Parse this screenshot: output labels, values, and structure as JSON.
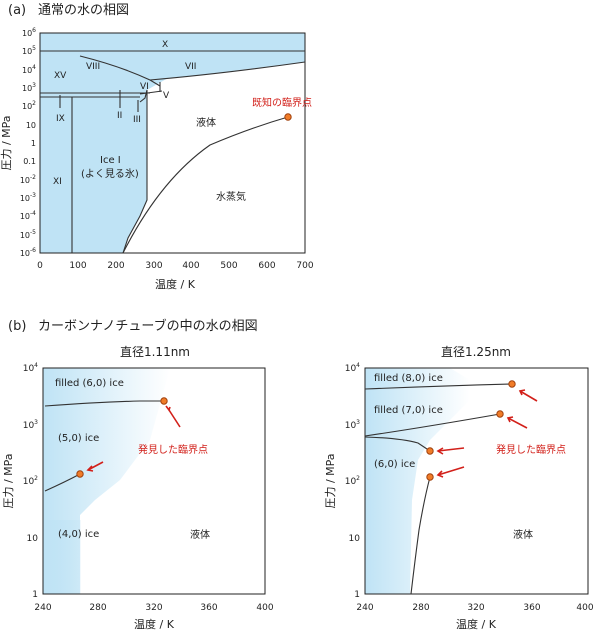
{
  "page": {
    "panel_a_label": "(a)",
    "panel_a_title": "通常の水の相図",
    "panel_b_label": "(b)",
    "panel_b_title": "カーボンナノチューブの中の水の相図"
  },
  "colors": {
    "phase_fill": "#bfe3f5",
    "critical": "#d2201a",
    "point": "#f07c28"
  },
  "chart_data": [
    {
      "type": "line",
      "id": "a",
      "xlabel": "温度 / K",
      "ylabel": "圧力 / MPa",
      "xlim": [
        0,
        700
      ],
      "ylim_exp": [
        -6,
        6
      ],
      "log_y": true,
      "x_ticks": [
        "0",
        "100",
        "200",
        "300",
        "400",
        "500",
        "600",
        "700"
      ],
      "y_ticks": [
        "10^-6",
        "10^-5",
        "10^-4",
        "10^-3",
        "10^-2",
        "0.1",
        "1",
        "10",
        "10^2",
        "10^3",
        "10^4",
        "10^5",
        "10^6"
      ],
      "series": [
        {
          "values": [
            [
              220,
              -6
            ],
            [
              240,
              -4.5
            ],
            [
              260,
              -3.2
            ],
            [
              273,
              -2.2
            ],
            [
              300,
              -1.5
            ],
            [
              350,
              -0.7
            ],
            [
              400,
              -0.1
            ],
            [
              450,
              0.35
            ],
            [
              500,
              0.7
            ],
            [
              550,
              1.0
            ],
            [
              600,
              1.2
            ],
            [
              647,
              1.34
            ]
          ]
        },
        {
          "values": [
            [
              273,
              -2.2
            ],
            [
              272,
              -1
            ],
            [
              272,
              0
            ],
            [
              270,
              1.5
            ],
            [
              262,
              2.0
            ],
            [
              250,
              2.3
            ]
          ]
        },
        {
          "values": [
            [
              0,
              4.8
            ],
            [
              700,
              4.8
            ]
          ]
        },
        {
          "values": [
            [
              100,
              4.5
            ],
            [
              180,
              3.95
            ],
            [
              240,
              3.5
            ],
            [
              270,
              3.0
            ]
          ]
        },
        {
          "values": [
            [
              270,
              3.0
            ],
            [
              400,
              3.6
            ],
            [
              550,
              4.0
            ],
            [
              700,
              4.2
            ]
          ]
        }
      ],
      "phase_labels": [
        "X",
        "VIII",
        "VII",
        "XV",
        "VI",
        "V",
        "IX",
        "II",
        "III",
        "XI",
        "Ice I",
        "(よく見る氷)",
        "液体",
        "水蒸気"
      ],
      "critical_point": {
        "x": 647,
        "y_exp": 1.34,
        "label": "既知の臨界点"
      }
    },
    {
      "type": "line",
      "id": "b1",
      "title": "直径1.11nm",
      "xlabel": "温度 / K",
      "ylabel": "圧力 / MPa",
      "xlim": [
        240,
        400
      ],
      "ylim_exp": [
        0,
        4
      ],
      "log_y": true,
      "x_ticks": [
        "240",
        "280",
        "320",
        "360",
        "400"
      ],
      "y_ticks": [
        "1",
        "10",
        "10^2",
        "10^3",
        "10^4"
      ],
      "series": [
        {
          "values": [
            [
              243,
              3.3
            ],
            [
              270,
              3.35
            ],
            [
              300,
              3.38
            ],
            [
              325,
              3.38
            ]
          ]
        },
        {
          "values": [
            [
              243,
              1.8
            ],
            [
              255,
              1.95
            ],
            [
              265,
              2.1
            ]
          ]
        }
      ],
      "phase_labels": [
        "filled (6,0) ice",
        "(5,0) ice",
        "(4,0) ice",
        "液体"
      ],
      "critical_points": [
        {
          "x": 325,
          "y_exp": 3.38
        },
        {
          "x": 265,
          "y_exp": 2.1
        }
      ],
      "critical_label": "発見した臨界点"
    },
    {
      "type": "line",
      "id": "b2",
      "title": "直径1.25nm",
      "xlabel": "温度 / K",
      "ylabel": "圧力 / MPa",
      "xlim": [
        240,
        400
      ],
      "ylim_exp": [
        0,
        4
      ],
      "log_y": true,
      "x_ticks": [
        "240",
        "280",
        "320",
        "360",
        "400"
      ],
      "y_ticks": [
        "1",
        "10",
        "10^2",
        "10^3",
        "10^4"
      ],
      "series": [
        {
          "values": [
            [
              240,
              3.6
            ],
            [
              280,
              3.63
            ],
            [
              320,
              3.68
            ],
            [
              345,
              3.7
            ]
          ]
        },
        {
          "values": [
            [
              240,
              2.78
            ],
            [
              270,
              2.9
            ],
            [
              300,
              3.0
            ],
            [
              338,
              3.13
            ]
          ]
        },
        {
          "values": [
            [
              240,
              2.75
            ],
            [
              260,
              2.72
            ],
            [
              278,
              2.65
            ],
            [
              287,
              2.55
            ]
          ]
        },
        {
          "values": [
            [
              287,
              2.05
            ],
            [
              284,
              1.5
            ],
            [
              280,
              0.9
            ],
            [
              276,
              0.4
            ],
            [
              273,
              0
            ]
          ]
        }
      ],
      "phase_labels": [
        "filled (8,0) ice",
        "filled (7,0) ice",
        "(6,0) ice",
        "液体"
      ],
      "critical_points": [
        {
          "x": 345,
          "y_exp": 3.7
        },
        {
          "x": 338,
          "y_exp": 3.13
        },
        {
          "x": 287,
          "y_exp": 2.55
        },
        {
          "x": 287,
          "y_exp": 2.05
        }
      ],
      "critical_label": "発見した臨界点"
    }
  ]
}
